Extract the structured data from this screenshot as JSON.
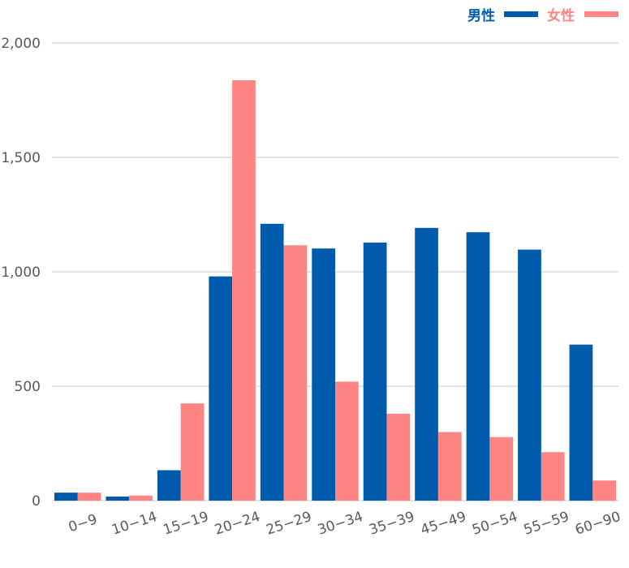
{
  "chart_data": {
    "type": "bar",
    "title": "",
    "xlabel": "",
    "ylabel": "",
    "categories": [
      "0−9",
      "10−14",
      "15−19",
      "20−24",
      "25−29",
      "30−34",
      "35−39",
      "45−49",
      "50−54",
      "55−59",
      "60−90"
    ],
    "series": [
      {
        "name": "男性",
        "color": "#005bac",
        "values": [
          35,
          18,
          133,
          980,
          1210,
          1102,
          1128,
          1192,
          1173,
          1097,
          682
        ]
      },
      {
        "name": "女性",
        "color": "#ff8585",
        "values": [
          35,
          22,
          425,
          1837,
          1116,
          520,
          380,
          300,
          278,
          212,
          88
        ]
      }
    ],
    "ylim": [
      0,
      2000
    ],
    "yticks": [
      0,
      500,
      1000,
      1500,
      2000
    ],
    "ytick_labels": [
      "0",
      "500",
      "1,000",
      "1,500",
      "2,000"
    ],
    "grid": true,
    "legend_position": "top-right"
  }
}
